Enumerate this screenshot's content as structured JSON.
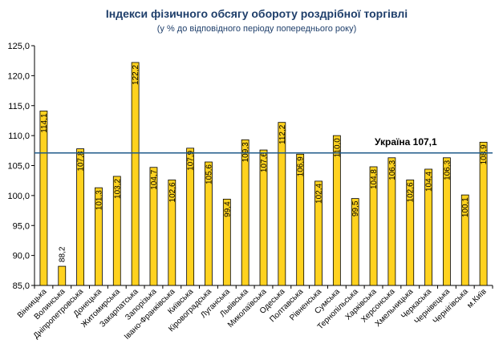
{
  "chart_data": {
    "type": "bar",
    "title": "Індекси фізичного обсягу обороту роздрібної торгівлі",
    "subtitle": "(у % до відповідного періоду попереднього року)",
    "categories": [
      "Вінницька",
      "Волинська",
      "Дніпропетровська",
      "Донецька",
      "Житомирська",
      "Закарпатська",
      "Запорізька",
      "Івано-Франківська",
      "Київська",
      "Кіровоградська",
      "Луганська",
      "Львівська",
      "Миколаївська",
      "Одеська",
      "Полтавська",
      "Рівненська",
      "Сумська",
      "Тернопільська",
      "Харківська",
      "Херсонська",
      "Хмельницька",
      "Черкаська",
      "Чернівецька",
      "Чернігівська",
      "м.Київ"
    ],
    "values": [
      114.1,
      88.2,
      107.8,
      101.3,
      103.2,
      122.2,
      104.7,
      102.6,
      107.9,
      105.6,
      99.4,
      109.3,
      107.6,
      112.2,
      106.9,
      102.4,
      110.0,
      99.5,
      104.8,
      106.3,
      102.6,
      104.4,
      106.3,
      100.1,
      108.9
    ],
    "value_labels": [
      "114,1",
      "88,2",
      "107,8",
      "101,3",
      "103,2",
      "122,2",
      "104,7",
      "102,6",
      "107,9",
      "105,6",
      "99,4",
      "109,3",
      "107,6",
      "112,2",
      "106,9",
      "102,4",
      "110,0",
      "99,5",
      "104,8",
      "106,3",
      "102,6",
      "104,4",
      "106,3",
      "100,1",
      "108,9"
    ],
    "ylim": [
      85,
      125
    ],
    "yticks": [
      85,
      90,
      95,
      100,
      105,
      110,
      115,
      120,
      125
    ],
    "ytick_labels": [
      "85,0",
      "90,0",
      "95,0",
      "100,0",
      "105,0",
      "110,0",
      "115,0",
      "120,0",
      "125,0"
    ],
    "reference_line": {
      "value": 107.1,
      "label": "Україна 107,1"
    },
    "bar_color": "#ffd21f",
    "bar_edge_color": "#000000",
    "line_color": "#1f5a8a",
    "grid": false
  }
}
